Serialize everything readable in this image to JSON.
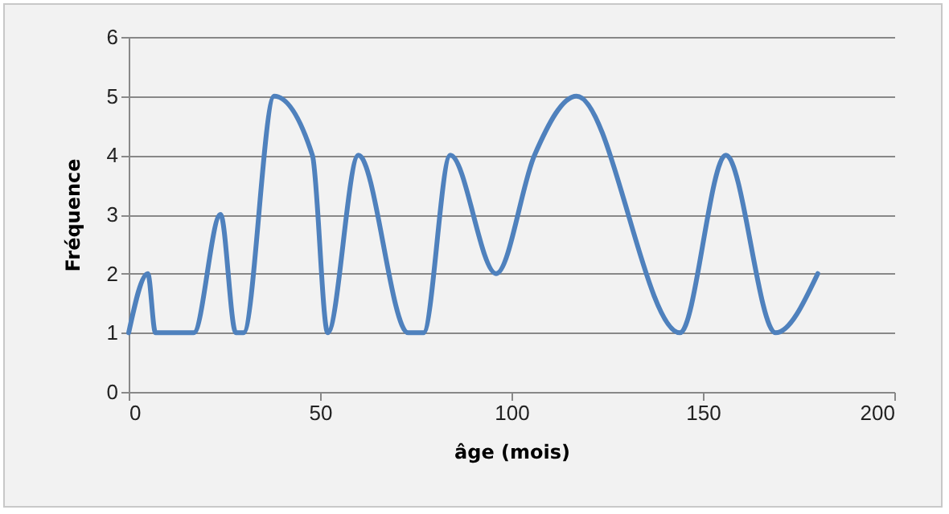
{
  "chart_data": {
    "type": "line",
    "xlabel": "âge (mois)",
    "ylabel": "Fréquence",
    "x": [
      0,
      5,
      7,
      12,
      17,
      24,
      28,
      30,
      38,
      48,
      52,
      60,
      73,
      77,
      84,
      96,
      106,
      117,
      144,
      156,
      169,
      180
    ],
    "series": [
      {
        "color": "#4f81bd",
        "values": [
          1,
          2,
          1,
          1,
          1,
          3,
          1,
          1,
          5,
          4,
          1,
          4,
          1,
          1,
          4,
          2,
          4,
          5,
          1,
          4,
          1,
          2
        ]
      }
    ],
    "xlim": [
      0,
      200
    ],
    "xticks": [
      0,
      50,
      100,
      150,
      200
    ],
    "ylim": [
      0,
      6
    ],
    "yticks": [
      0,
      1,
      2,
      3,
      4,
      5,
      6
    ],
    "grid": "y",
    "marker": "none",
    "line_style": "solid"
  }
}
